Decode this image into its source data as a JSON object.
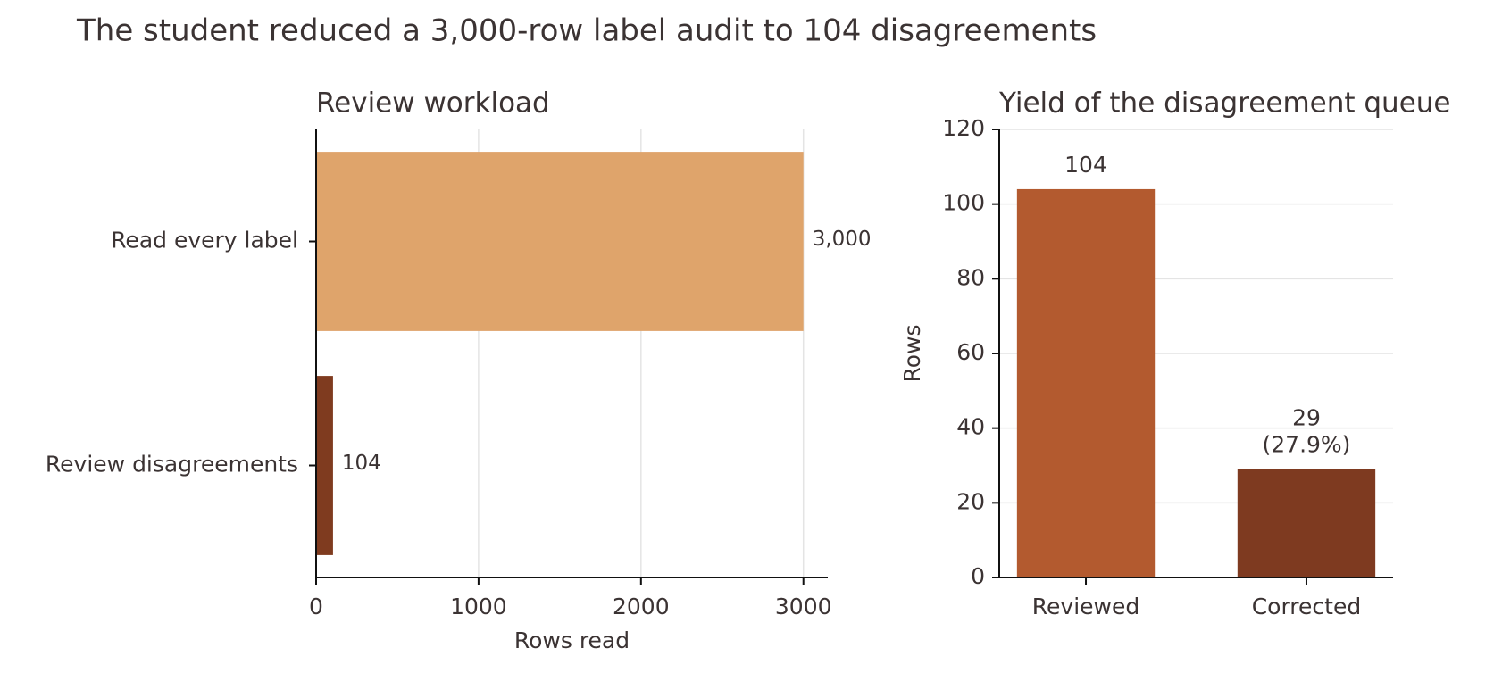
{
  "title": "The student reduced a 3,000-row label audit to 104 disagreements",
  "chart_data": [
    {
      "type": "barh",
      "title": "Review workload",
      "categories": [
        "Read every label",
        "Review disagreements"
      ],
      "values": [
        3000,
        104
      ],
      "value_labels": [
        "3,000",
        "104"
      ],
      "colors": [
        "#dfa46b",
        "#7f3b1f"
      ],
      "xlim": [
        0,
        3150
      ],
      "xticks": [
        0,
        1000,
        2000,
        3000
      ],
      "xlabel": "Rows read",
      "grid": true
    },
    {
      "type": "bar",
      "title": "Yield of the disagreement queue",
      "categories": [
        "Reviewed",
        "Corrected"
      ],
      "values": [
        104,
        29
      ],
      "value_labels": [
        "104",
        "29\n(27.9%)"
      ],
      "colors": [
        "#b35a2f",
        "#7e3a20"
      ],
      "ylim": [
        0,
        120
      ],
      "yticks": [
        0,
        20,
        40,
        60,
        80,
        100,
        120
      ],
      "ylabel": "Rows",
      "grid": true
    }
  ]
}
